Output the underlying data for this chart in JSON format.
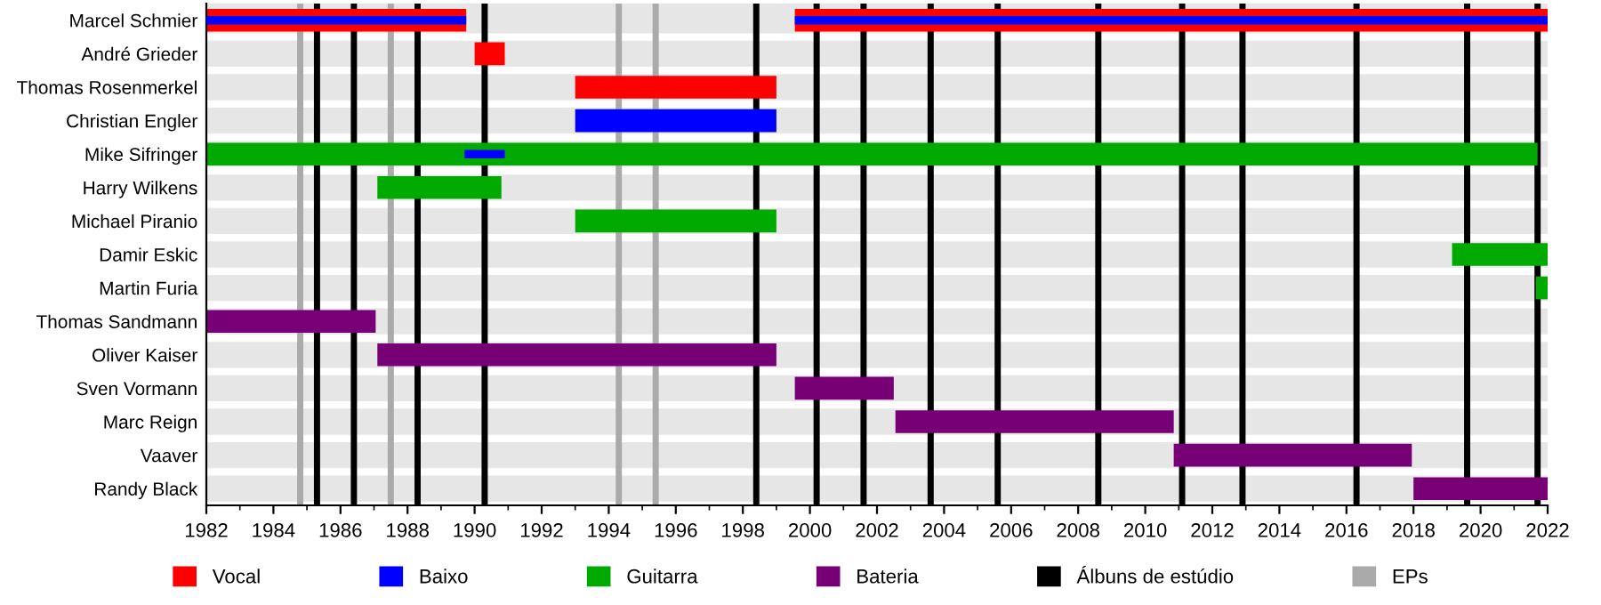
{
  "chart_data": {
    "type": "bar",
    "orientation": "horizontal",
    "categories": [
      "Marcel Schmier",
      "André Grieder",
      "Thomas Rosenmerkel",
      "Christian Engler",
      "Mike Sifringer",
      "Harry Wilkens",
      "Michael Piranio",
      "Damir Eskic",
      "Martin Furia",
      "Thomas Sandmann",
      "Oliver Kaiser",
      "Sven Vormann",
      "Marc Reign",
      "Vaaver",
      "Randy Black"
    ],
    "series": [
      {
        "name": "Vocal",
        "color": "#ff0000",
        "base": [
          1982,
          1990.0,
          1993.0,
          null,
          null,
          null,
          null,
          null,
          null,
          null,
          null,
          null,
          null,
          null,
          null
        ],
        "values": [
          7.75,
          0.9,
          6.0,
          null,
          null,
          null,
          null,
          null,
          null,
          null,
          null,
          null,
          null,
          null,
          null
        ]
      },
      {
        "color": "#ff0000",
        "base": [
          1999.55,
          null,
          null,
          null,
          null,
          null,
          null,
          null,
          null,
          null,
          null,
          null,
          null,
          null,
          null
        ],
        "values": [
          22.45,
          null,
          null,
          null,
          null,
          null,
          null,
          null,
          null,
          null,
          null,
          null,
          null,
          null,
          null
        ]
      },
      {
        "name": "Baixo",
        "color": "#0000ff",
        "base": [
          1982,
          null,
          null,
          1993.0,
          1989.7,
          null,
          null,
          null,
          null,
          null,
          null,
          null,
          null,
          null,
          null
        ],
        "values": [
          7.75,
          null,
          null,
          6.0,
          1.2,
          null,
          null,
          null,
          null,
          null,
          null,
          null,
          null,
          null,
          null
        ]
      },
      {
        "color": "#0000ff",
        "base": [
          1999.55,
          null,
          null,
          null,
          null,
          null,
          null,
          null,
          null,
          null,
          null,
          null,
          null,
          null,
          null
        ],
        "values": [
          22.45,
          null,
          null,
          null,
          null,
          null,
          null,
          null,
          null,
          null,
          null,
          null,
          null,
          null,
          null
        ]
      },
      {
        "name": "Guitarra",
        "color": "#00aa00",
        "base": [
          null,
          null,
          null,
          null,
          1982,
          1987.1,
          1993.0,
          2019.15,
          2021.65,
          null,
          null,
          null,
          null,
          null,
          null
        ],
        "values": [
          null,
          null,
          null,
          null,
          39.7,
          3.7,
          6.0,
          2.85,
          0.35,
          null,
          null,
          null,
          null,
          null,
          null
        ]
      },
      {
        "name": "Bateria",
        "color": "#770077",
        "base": [
          null,
          null,
          null,
          null,
          null,
          null,
          null,
          null,
          null,
          1982,
          1987.1,
          1999.55,
          2002.55,
          2010.85,
          2018.0
        ],
        "values": [
          null,
          null,
          null,
          null,
          null,
          null,
          null,
          null,
          null,
          5.05,
          11.9,
          2.95,
          8.3,
          7.1,
          4.0
        ]
      }
    ],
    "xlim": [
      1982,
      2022
    ],
    "xticks": [
      1982,
      1984,
      1986,
      1988,
      1990,
      1992,
      1994,
      1996,
      1998,
      2000,
      2002,
      2004,
      2006,
      2008,
      2010,
      2012,
      2014,
      2016,
      2018,
      2020,
      2022
    ],
    "ref_lines": [
      {
        "axis": "x",
        "value": 1985.3,
        "color": "#000000",
        "label": "Álbuns de estúdio"
      },
      {
        "axis": "x",
        "value": 1986.4,
        "color": "#000000"
      },
      {
        "axis": "x",
        "value": 1988.3,
        "color": "#000000"
      },
      {
        "axis": "x",
        "value": 1990.3,
        "color": "#000000"
      },
      {
        "axis": "x",
        "value": 1998.4,
        "color": "#000000"
      },
      {
        "axis": "x",
        "value": 2000.2,
        "color": "#000000"
      },
      {
        "axis": "x",
        "value": 2001.6,
        "color": "#000000"
      },
      {
        "axis": "x",
        "value": 2003.6,
        "color": "#000000"
      },
      {
        "axis": "x",
        "value": 2005.6,
        "color": "#000000"
      },
      {
        "axis": "x",
        "value": 2008.6,
        "color": "#000000"
      },
      {
        "axis": "x",
        "value": 2011.1,
        "color": "#000000"
      },
      {
        "axis": "x",
        "value": 2012.9,
        "color": "#000000"
      },
      {
        "axis": "x",
        "value": 2016.3,
        "color": "#000000"
      },
      {
        "axis": "x",
        "value": 2019.6,
        "color": "#000000"
      },
      {
        "axis": "x",
        "value": 2021.7,
        "color": "#000000"
      },
      {
        "axis": "x",
        "value": 1984.8,
        "color": "#aaaaaa",
        "label": "EPs"
      },
      {
        "axis": "x",
        "value": 1987.5,
        "color": "#aaaaaa"
      },
      {
        "axis": "x",
        "value": 1994.3,
        "color": "#aaaaaa"
      },
      {
        "axis": "x",
        "value": 1995.4,
        "color": "#aaaaaa"
      }
    ],
    "grid": false,
    "legend": "bottom"
  }
}
